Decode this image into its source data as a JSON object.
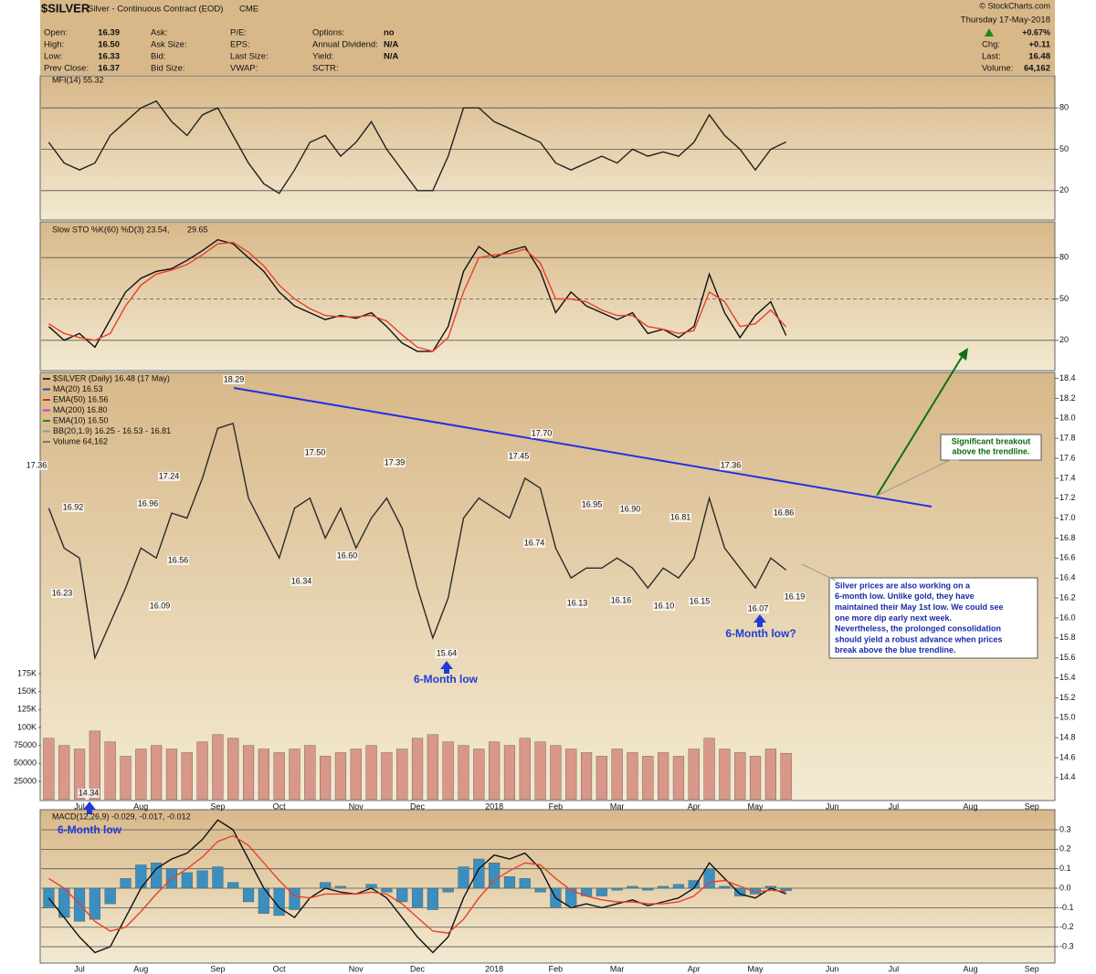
{
  "header": {
    "symbol": "$SILVER",
    "name": "Silver - Continuous Contract (EOD)",
    "exchange": "CME",
    "source": "© StockCharts.com",
    "date": "Thursday 17-May-2018",
    "change_pct": "+0.67%",
    "quote": [
      {
        "label": "Open:",
        "value": "16.39"
      },
      {
        "label": "High:",
        "value": "16.50"
      },
      {
        "label": "Low:",
        "value": "16.33"
      },
      {
        "label": "Prev Close:",
        "value": "16.37"
      }
    ],
    "col2": [
      "Ask:",
      "Ask Size:",
      "Bid:",
      "Bid Size:"
    ],
    "col3": [
      "P/E:",
      "EPS:",
      "Last Size:",
      "VWAP:"
    ],
    "col4": [
      {
        "label": "Options:",
        "value": "no"
      },
      {
        "label": "Annual Dividend:",
        "value": "N/A"
      },
      {
        "label": "Yield:",
        "value": "N/A"
      },
      {
        "label": "SCTR:"
      }
    ],
    "right": [
      {
        "label": "Chg:",
        "value": "+0.11"
      },
      {
        "label": "Last:",
        "value": "16.48"
      },
      {
        "label": "Volume:",
        "value": "64,162"
      }
    ]
  },
  "chart_data": [
    {
      "type": "line",
      "title": "MFI(14) 55.32",
      "ylim": [
        0,
        100
      ],
      "yticks": [
        80,
        50,
        20
      ],
      "grid": true,
      "series": [
        {
          "name": "MFI(14)",
          "color": "#222222",
          "values": [
            55,
            40,
            35,
            40,
            60,
            70,
            80,
            85,
            70,
            60,
            75,
            80,
            60,
            40,
            25,
            18,
            35,
            55,
            60,
            45,
            55,
            70,
            50,
            35,
            20,
            20,
            45,
            80,
            80,
            70,
            65,
            60,
            55,
            40,
            35,
            40,
            45,
            40,
            50,
            45,
            48,
            45,
            55,
            75,
            60,
            50,
            35,
            50,
            55.32
          ]
        }
      ]
    },
    {
      "type": "line",
      "title": "Slow STO %K(60) %D(3) 23.54,",
      "title_tail": "29.65",
      "ylim": [
        0,
        100
      ],
      "yticks": [
        80,
        50,
        20
      ],
      "grid": true,
      "dashed_tick": 50,
      "series": [
        {
          "name": "%K(60)",
          "color": "#111111",
          "values": [
            30,
            20,
            25,
            15,
            35,
            55,
            65,
            70,
            72,
            78,
            85,
            93,
            90,
            80,
            70,
            55,
            45,
            40,
            35,
            38,
            36,
            40,
            30,
            18,
            12,
            12,
            30,
            70,
            88,
            80,
            85,
            88,
            70,
            40,
            55,
            45,
            40,
            35,
            40,
            25,
            28,
            22,
            30,
            68,
            40,
            22,
            38,
            48,
            23.54
          ]
        },
        {
          "name": "%D(3)",
          "color": "#e8402a",
          "values": [
            32,
            25,
            22,
            20,
            25,
            45,
            60,
            68,
            71,
            75,
            82,
            90,
            91,
            84,
            74,
            60,
            50,
            43,
            38,
            37,
            37,
            38,
            34,
            24,
            15,
            12,
            22,
            55,
            80,
            82,
            83,
            86,
            76,
            50,
            50,
            48,
            42,
            38,
            38,
            30,
            28,
            25,
            27,
            55,
            48,
            30,
            32,
            42,
            29.65
          ]
        }
      ]
    },
    {
      "type": "line",
      "grid": false,
      "categories": [
        null,
        null,
        "Jul",
        null,
        null,
        null,
        "Aug",
        null,
        null,
        null,
        null,
        "Sep",
        null,
        null,
        null,
        "Oct",
        null,
        null,
        null,
        null,
        "Nov",
        null,
        null,
        null,
        "Dec",
        null,
        null,
        null,
        null,
        "2018",
        null,
        null,
        null,
        "Feb",
        null,
        null,
        null,
        "Mar",
        null,
        null,
        null,
        null,
        "Apr",
        null,
        null,
        null,
        "May",
        null,
        null,
        null,
        null,
        "Jun",
        null,
        null,
        null,
        "Jul",
        null,
        null,
        null,
        null,
        "Aug",
        null,
        null,
        null,
        "Sep",
        null
      ],
      "ylim": [
        14.17,
        18.46
      ],
      "yticks": [
        18.4,
        18.2,
        {
          "value": 18,
          "label": "18.0"
        },
        17.8,
        17.6,
        17.4,
        17.2,
        {
          "value": 17,
          "label": "17.0"
        },
        16.8,
        16.6,
        16.4,
        16.2,
        {
          "value": 16,
          "label": "16.0"
        },
        15.8,
        15.6,
        15.4,
        15.2,
        {
          "value": 15,
          "label": "15.0"
        },
        14.8,
        14.6,
        14.4
      ],
      "y2lim": [
        -1700,
        594000
      ],
      "y2ticks": [
        {
          "value": 175000,
          "label": "175K"
        },
        {
          "value": 150000,
          "label": "150K"
        },
        {
          "value": 125000,
          "label": "125K"
        },
        {
          "value": 100000,
          "label": "100K"
        },
        75000,
        50000,
        25000
      ],
      "legend": [
        {
          "text": "$SILVER (Daily) 16.48 (17 May)",
          "color": "#333333"
        },
        {
          "text": "MA(20) 16.53",
          "color": "#3344aa"
        },
        {
          "text": "EMA(50) 16.56",
          "color": "#cc3333"
        },
        {
          "text": "MA(200) 16.80",
          "color": "#dd33cc"
        },
        {
          "text": "EMA(10) 16.50",
          "color": "#228822"
        },
        {
          "text": "BB(20,1.9) 16.25 - 16.53 - 16.81",
          "color": "#999999"
        },
        {
          "text": "Volume 64,162",
          "color": "#777777"
        }
      ],
      "series": [
        {
          "name": "Volume",
          "axis": "y2",
          "style": "bar",
          "color": "#d9978a",
          "values": [
            85000,
            75000,
            70000,
            95000,
            80000,
            60000,
            70000,
            75000,
            70000,
            65000,
            80000,
            90000,
            85000,
            75000,
            70000,
            65000,
            70000,
            75000,
            60000,
            65000,
            70000,
            75000,
            65000,
            70000,
            85000,
            90000,
            80000,
            75000,
            70000,
            80000,
            75000,
            85000,
            80000,
            75000,
            70000,
            65000,
            60000,
            70000,
            65000,
            60000,
            65000,
            60000,
            70000,
            85000,
            70000,
            65000,
            60000,
            70000,
            64162,
            null,
            null,
            null,
            null,
            null,
            null,
            null,
            null,
            null,
            null,
            null,
            null,
            null,
            null,
            null,
            null,
            null
          ]
        },
        {
          "name": "$SILVER",
          "color": "#2b2b2b",
          "values": [
            17.1,
            16.7,
            16.6,
            15.6,
            15.95,
            16.3,
            16.7,
            16.6,
            17.05,
            17.0,
            17.4,
            17.9,
            17.95,
            17.2,
            16.9,
            16.6,
            17.1,
            17.2,
            16.8,
            17.1,
            16.7,
            17.0,
            17.2,
            16.9,
            16.3,
            15.8,
            16.2,
            17.0,
            17.2,
            17.1,
            17.0,
            17.4,
            17.3,
            16.7,
            16.4,
            16.5,
            16.5,
            16.6,
            16.5,
            16.3,
            16.5,
            16.4,
            16.6,
            17.2,
            16.7,
            16.5,
            16.3,
            16.6,
            16.48,
            null,
            null,
            null,
            null,
            null,
            null,
            null,
            null,
            null,
            null,
            null,
            null,
            null,
            null,
            null,
            null,
            null
          ]
        }
      ],
      "annotations": [
        17.36,
        16.92,
        16.23,
        17.24,
        16.96,
        16.56,
        16.09,
        18.29,
        {
          "value": 17.5,
          "label": "17.50"
        },
        16.34,
        {
          "value": 16.6,
          "label": "16.60"
        },
        17.39,
        15.64,
        17.45,
        {
          "value": 17.7,
          "label": "17.70"
        },
        16.74,
        16.95,
        16.13,
        16.16,
        {
          "value": 16.9,
          "label": "16.90"
        },
        16.81,
        {
          "value": 16.1,
          "label": "16.10"
        },
        16.15,
        17.36,
        16.07,
        16.86,
        16.19,
        14.34
      ],
      "callouts": {
        "breakout": [
          "Significant breakout",
          "above the trendline."
        ],
        "note": [
          "Silver prices are also working on a",
          "6-month low. Unlike gold, they have",
          "maintained their May 1st low. We could see",
          "one more dip early next week.",
          "Nevertheless, the prolonged consolidation",
          "should yield a robust advance when prices",
          "break above the blue trendline."
        ],
        "low1": "6-Month low",
        "low2": "6-Month low?"
      }
    },
    {
      "type": "line",
      "title": "MACD(12,26,9) -0.029, -0.017, -0.012",
      "callout": "6-Month low",
      "ylim": [
        -0.384,
        0.389
      ],
      "grid": true,
      "categories": [
        null,
        null,
        "Jul",
        null,
        null,
        null,
        "Aug",
        null,
        null,
        null,
        null,
        "Sep",
        null,
        null,
        null,
        "Oct",
        null,
        null,
        null,
        null,
        "Nov",
        null,
        null,
        null,
        "Dec",
        null,
        null,
        null,
        null,
        "2018",
        null,
        null,
        null,
        "Feb",
        null,
        null,
        null,
        "Mar",
        null,
        null,
        null,
        null,
        "Apr",
        null,
        null,
        null,
        "May",
        null,
        null,
        null,
        null,
        "Jun",
        null,
        null,
        null,
        "Jul",
        null,
        null,
        null,
        null,
        "Aug",
        null,
        null,
        null,
        "Sep",
        null
      ],
      "yticks": [
        0.3,
        0.2,
        0.1,
        {
          "value": 0,
          "label": "0.0"
        },
        -0.1,
        -0.2,
        -0.3
      ],
      "series": [
        {
          "name": "Histogram",
          "style": "bar",
          "color": "#3a8fc0",
          "values": [
            -0.1,
            -0.15,
            -0.17,
            -0.16,
            -0.08,
            0.05,
            0.12,
            0.13,
            0.1,
            0.08,
            0.09,
            0.11,
            0.03,
            -0.07,
            -0.13,
            -0.14,
            -0.11,
            0.0,
            0.03,
            0.01,
            0.0,
            0.02,
            -0.02,
            -0.07,
            -0.1,
            -0.11,
            -0.02,
            0.11,
            0.15,
            0.13,
            0.06,
            0.05,
            -0.02,
            -0.1,
            -0.09,
            -0.04,
            -0.04,
            -0.01,
            0.01,
            -0.01,
            0.01,
            0.02,
            0.04,
            0.1,
            0.01,
            -0.04,
            -0.03,
            0.01,
            -0.012,
            null,
            null,
            null,
            null,
            null,
            null,
            null,
            null,
            null,
            null,
            null,
            null,
            null,
            null,
            null,
            null,
            null
          ]
        },
        {
          "name": "MACD",
          "color": "#111111",
          "values": [
            -0.05,
            -0.15,
            -0.25,
            -0.33,
            -0.3,
            -0.15,
            0.0,
            0.1,
            0.15,
            0.18,
            0.25,
            0.35,
            0.3,
            0.15,
            0.0,
            -0.1,
            -0.15,
            -0.05,
            0.0,
            -0.02,
            -0.03,
            0.0,
            -0.05,
            -0.15,
            -0.25,
            -0.33,
            -0.25,
            -0.05,
            0.1,
            0.17,
            0.15,
            0.18,
            0.1,
            -0.05,
            -0.1,
            -0.08,
            -0.1,
            -0.08,
            -0.06,
            -0.09,
            -0.07,
            -0.05,
            0.0,
            0.13,
            0.05,
            -0.03,
            -0.05,
            0.0,
            -0.029,
            null,
            null,
            null,
            null,
            null,
            null,
            null,
            null,
            null,
            null,
            null,
            null,
            null,
            null,
            null,
            null,
            null
          ]
        },
        {
          "name": "Signal",
          "color": "#e8402a",
          "values": [
            0.05,
            0.0,
            -0.08,
            -0.17,
            -0.22,
            -0.2,
            -0.12,
            -0.03,
            0.05,
            0.1,
            0.16,
            0.24,
            0.27,
            0.22,
            0.13,
            0.04,
            -0.04,
            -0.05,
            -0.03,
            -0.03,
            -0.03,
            -0.02,
            -0.03,
            -0.08,
            -0.15,
            -0.22,
            -0.23,
            -0.16,
            -0.05,
            0.04,
            0.09,
            0.13,
            0.12,
            0.05,
            -0.01,
            -0.04,
            -0.06,
            -0.07,
            -0.07,
            -0.08,
            -0.08,
            -0.07,
            -0.04,
            0.03,
            0.04,
            0.01,
            -0.02,
            -0.01,
            -0.017,
            null,
            null,
            null,
            null,
            null,
            null,
            null,
            null,
            null,
            null,
            null,
            null,
            null,
            null,
            null,
            null,
            null
          ]
        }
      ]
    }
  ]
}
